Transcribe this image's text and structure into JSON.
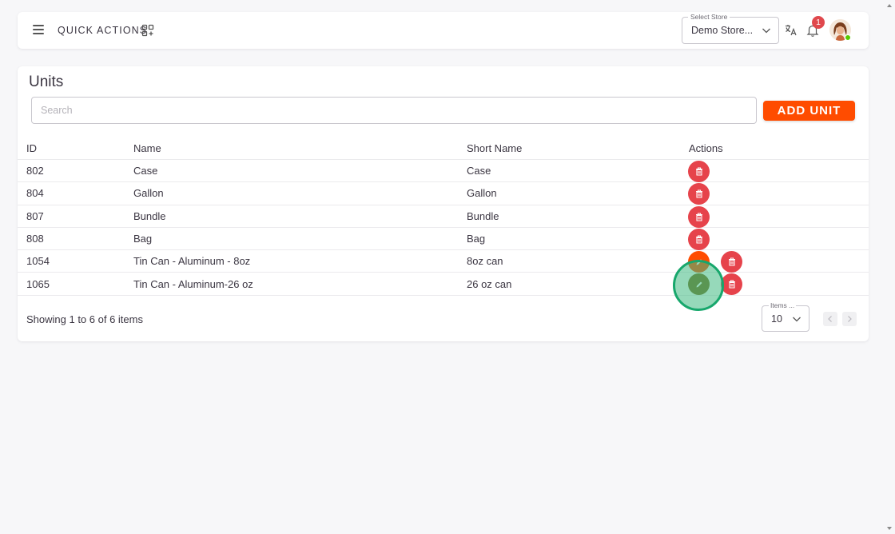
{
  "topbar": {
    "quick_actions_label": "QUICK ACTIONS",
    "store_select": {
      "legend": "Select Store",
      "value": "Demo Store..."
    },
    "notifications_count": "1",
    "icons": [
      "menu-icon",
      "apps-add-icon",
      "translate-icon",
      "bell-icon",
      "chevron-down-icon"
    ]
  },
  "page": {
    "title": "Units",
    "search_placeholder": "Search",
    "add_button_label": "ADD UNIT"
  },
  "table": {
    "columns": [
      "ID",
      "Name",
      "Short Name",
      "Actions"
    ],
    "rows": [
      {
        "id": "802",
        "name": "Case",
        "short_name": "Case",
        "actions": [
          "delete"
        ]
      },
      {
        "id": "804",
        "name": "Gallon",
        "short_name": "Gallon",
        "actions": [
          "delete"
        ]
      },
      {
        "id": "807",
        "name": "Bundle",
        "short_name": "Bundle",
        "actions": [
          "delete"
        ]
      },
      {
        "id": "808",
        "name": "Bag",
        "short_name": "Bag",
        "actions": [
          "delete"
        ]
      },
      {
        "id": "1054",
        "name": "Tin Can - Aluminum - 8oz",
        "short_name": "8oz can",
        "actions": [
          "edit",
          "delete"
        ]
      },
      {
        "id": "1065",
        "name": "Tin Can - Aluminum-26 oz",
        "short_name": "26 oz can",
        "actions": [
          "edit",
          "delete"
        ]
      }
    ]
  },
  "footer": {
    "showing_text": "Showing 1 to 6 of 6 items",
    "items_per_page": {
      "legend": "Items ...",
      "value": "10"
    }
  },
  "colors": {
    "accent": "#ff4c00",
    "delete": "#e6434b",
    "badge": "#e0484d",
    "click_indicator": "#17a76c",
    "background": "#f7f7f9"
  }
}
